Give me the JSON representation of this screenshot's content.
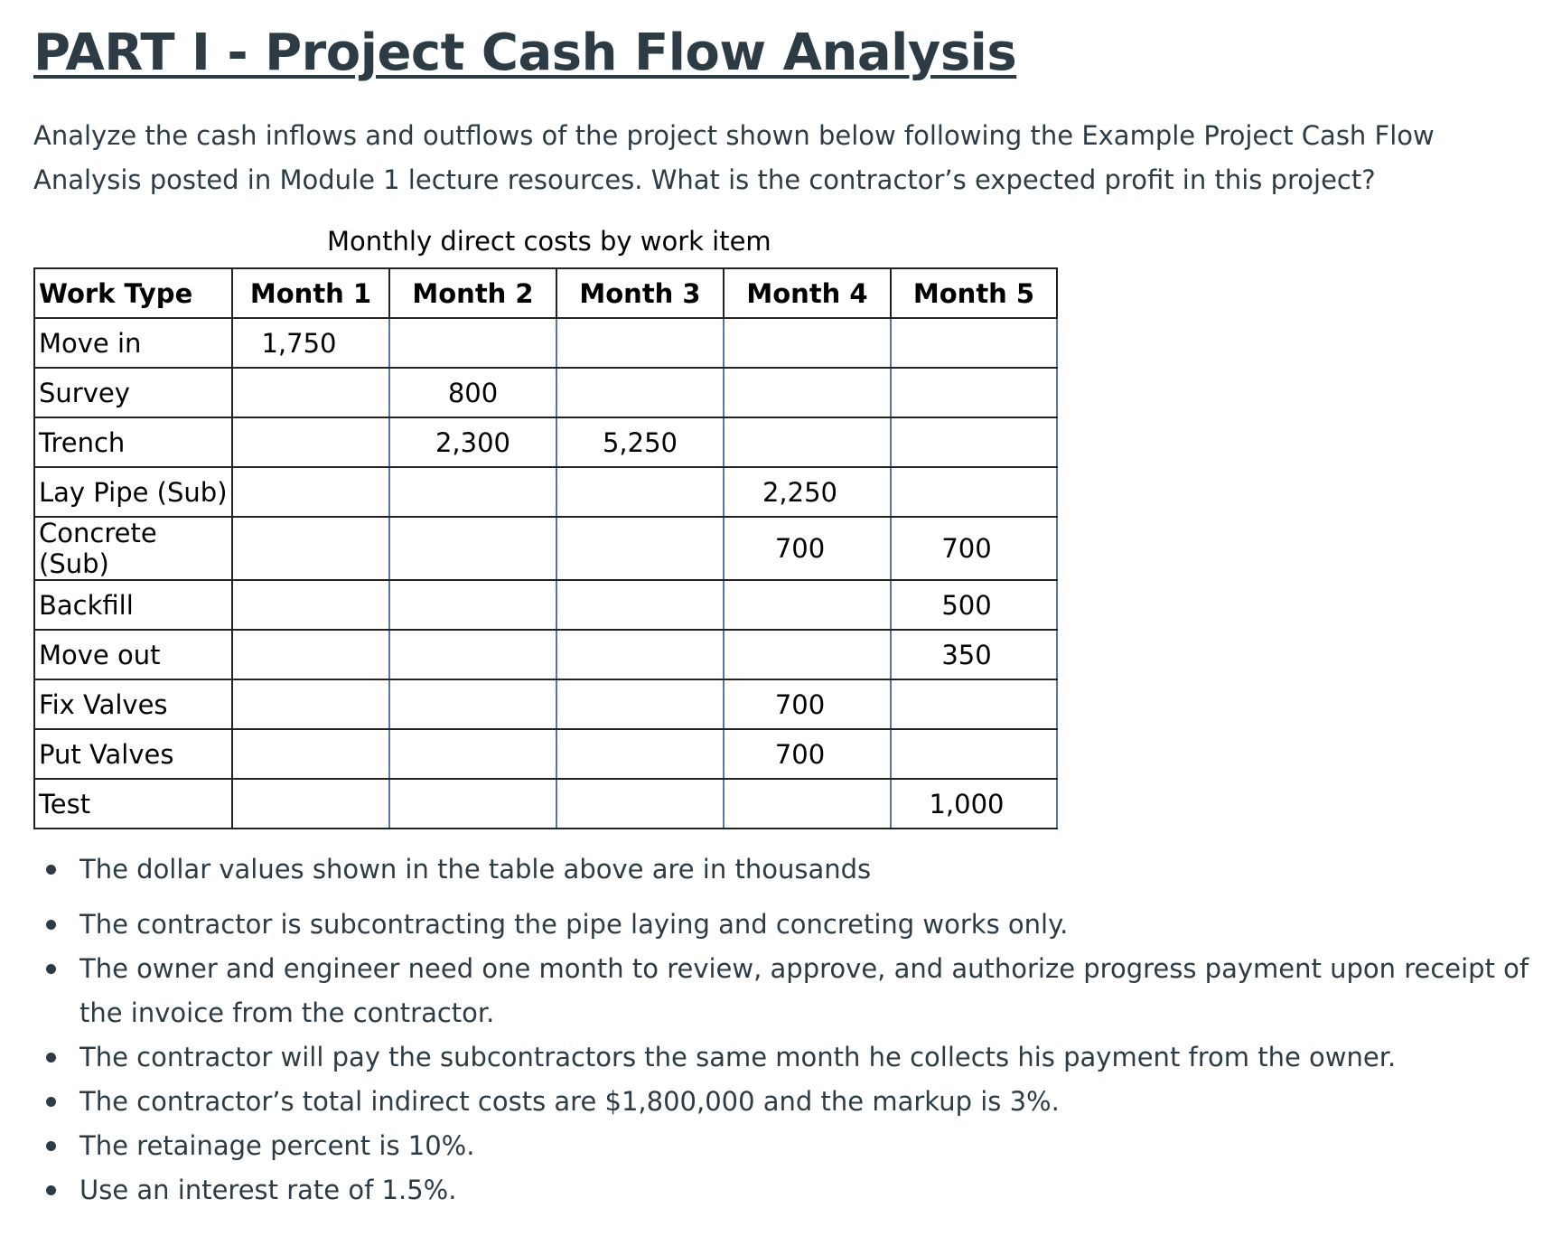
{
  "title": "PART I - Project Cash Flow Analysis",
  "intro": "Analyze the cash inflows and outflows of the project shown below following the Example Project Cash Flow Analysis posted in Module 1 lecture resources. What is the contractor’s expected profit in this project?",
  "table": {
    "caption": "Monthly direct costs by work item",
    "headers": [
      "Work Type",
      "Month 1",
      "Month 2",
      "Month 3",
      "Month 4",
      "Month 5"
    ],
    "rows": [
      [
        "Move in",
        "1,750",
        "",
        "",
        "",
        ""
      ],
      [
        "Survey",
        "",
        "800",
        "",
        "",
        ""
      ],
      [
        "Trench",
        "",
        "2,300",
        "5,250",
        "",
        ""
      ],
      [
        "Lay Pipe (Sub)",
        "",
        "",
        "",
        "2,250",
        ""
      ],
      [
        "Concrete (Sub)",
        "",
        "",
        "",
        "700",
        "700"
      ],
      [
        "Backfill",
        "",
        "",
        "",
        "",
        "500"
      ],
      [
        "Move out",
        "",
        "",
        "",
        "",
        "350"
      ],
      [
        "Fix Valves",
        "",
        "",
        "",
        "700",
        ""
      ],
      [
        "Put Valves",
        "",
        "",
        "",
        "700",
        ""
      ],
      [
        "Test",
        "",
        "",
        "",
        "",
        "1,000"
      ]
    ]
  },
  "notes": [
    "The dollar values shown in the table above are in thousands",
    "The contractor is subcontracting the pipe laying and concreting works only.",
    "The owner and engineer need one month to review, approve, and authorize progress payment upon receipt of the invoice from the contractor.",
    "The contractor will pay the subcontractors the same month he collects his payment from the owner.",
    "The contractor’s total indirect costs are $1,800,000 and the markup is 3%.",
    "The retainage percent is 10%.",
    "Use an interest rate of 1.5%."
  ]
}
